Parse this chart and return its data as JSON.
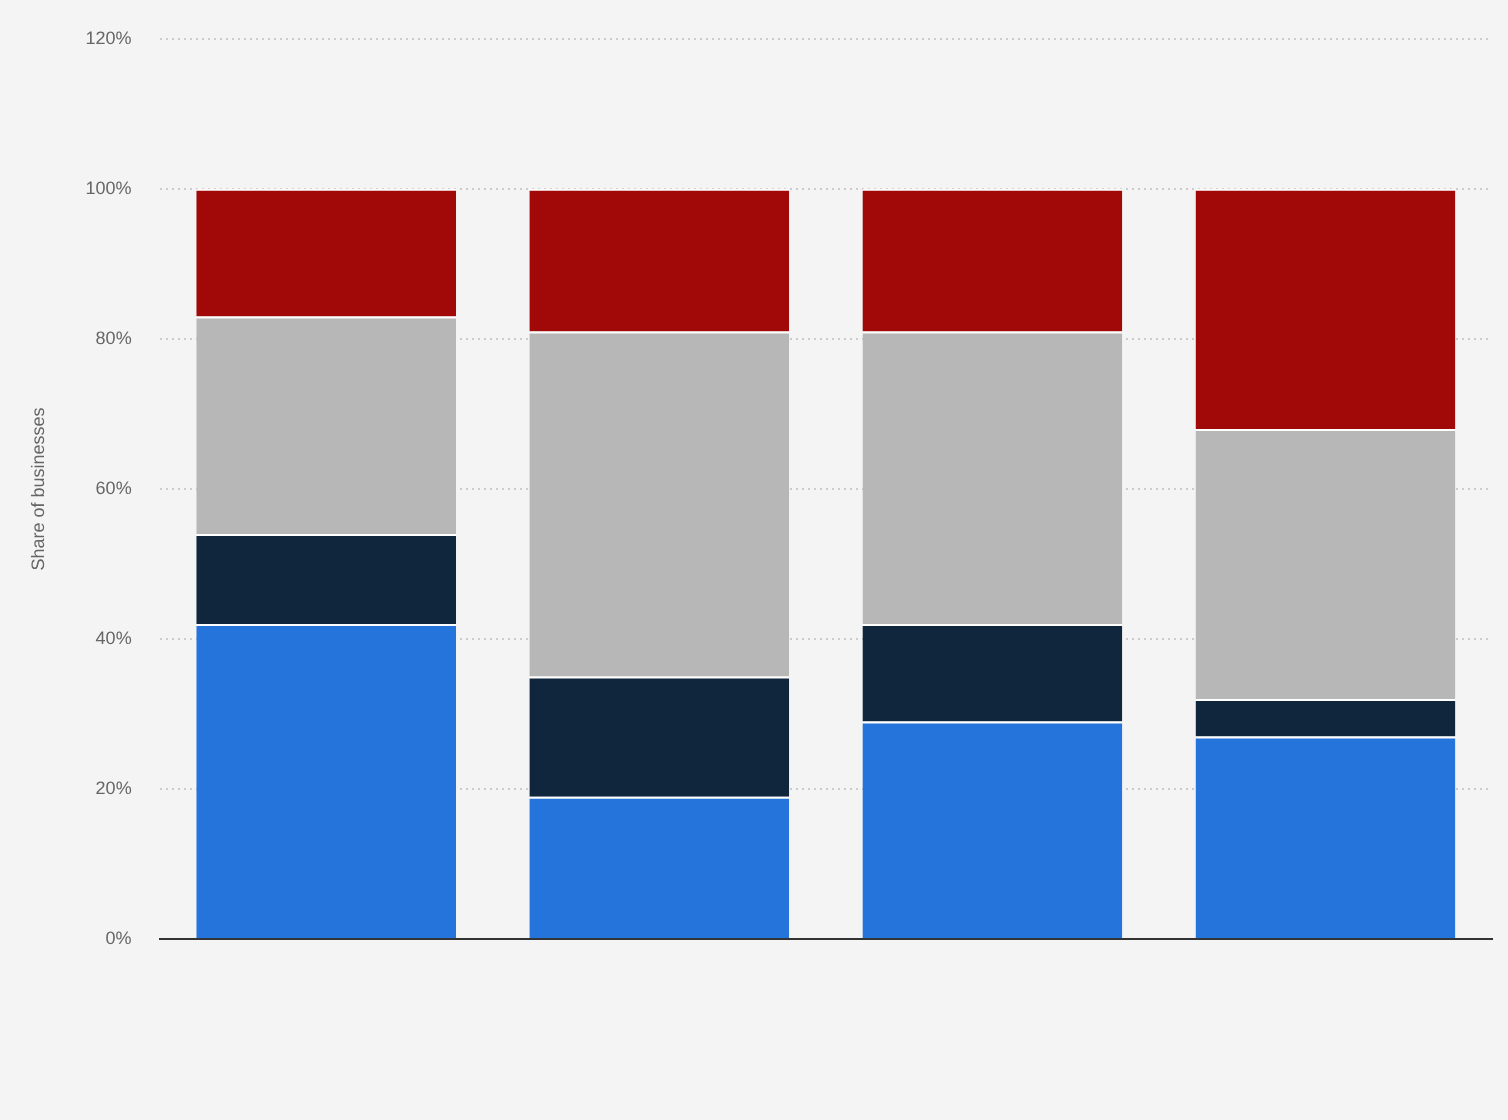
{
  "chart_data": {
    "type": "bar",
    "stacked": true,
    "ylabel": "Share of businesses",
    "categories": [
      null,
      null,
      null,
      null
    ],
    "series": [
      {
        "color": "#2574dc",
        "values": [
          42,
          19,
          29,
          27
        ]
      },
      {
        "color": "#0f263d",
        "values": [
          12,
          16,
          13,
          5
        ]
      },
      {
        "color": "#b7b7b7",
        "values": [
          29,
          46,
          39,
          36
        ]
      },
      {
        "color": "#a10909",
        "values": [
          17,
          19,
          19,
          32
        ]
      }
    ],
    "ylim": [
      0,
      120
    ],
    "yticks": [
      {
        "value": 0,
        "label": "0%"
      },
      {
        "value": 20,
        "label": "20%"
      },
      {
        "value": 40,
        "label": "40%"
      },
      {
        "value": 60,
        "label": "60%"
      },
      {
        "value": 80,
        "label": "80%"
      },
      {
        "value": 100,
        "label": "100%"
      },
      {
        "value": 120,
        "label": "120%"
      }
    ],
    "grid": "y",
    "legend": false
  }
}
